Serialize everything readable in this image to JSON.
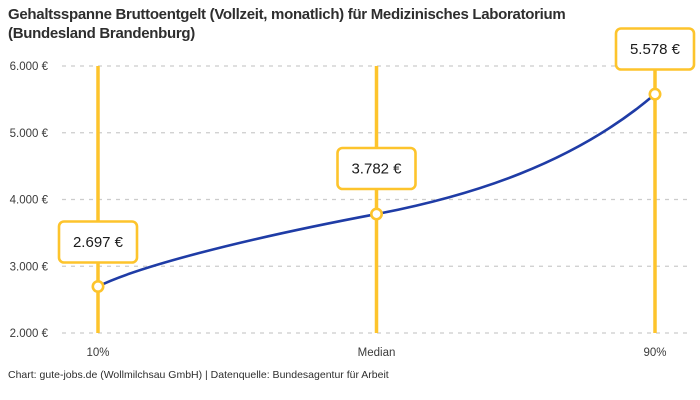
{
  "title": {
    "line1": "Gehaltsspanne Bruttoentgelt (Vollzeit, monatlich) für Medizinisches Laboratorium",
    "line2": "(Bundesland Brandenburg)"
  },
  "footer": {
    "text": "Chart: gute-jobs.de (Wollmilchsau GmbH) | Datenquelle: Bundesagentur für Arbeit"
  },
  "colors": {
    "accent_yellow": "#fdc42c",
    "line_blue": "#1f3ca6",
    "grid_gray": "#cccccc",
    "text_dark": "#2e2e2e",
    "box_fill": "#ffffff"
  },
  "chart_data": {
    "type": "line",
    "title": "Gehaltsspanne Bruttoentgelt (Vollzeit, monatlich) für Medizinisches Laboratorium (Bundesland Brandenburg)",
    "xlabel": "",
    "ylabel": "",
    "categories": [
      "10%",
      "Median",
      "90%"
    ],
    "values": [
      2697,
      3782,
      5578
    ],
    "point_labels": [
      "2.697 €",
      "3.782 €",
      "5.578 €"
    ],
    "ylim": [
      2000,
      6000
    ],
    "yticks": [
      {
        "value": 2000,
        "label": "2.000 €"
      },
      {
        "value": 3000,
        "label": "3.000 €"
      },
      {
        "value": 4000,
        "label": "4.000 €"
      },
      {
        "value": 5000,
        "label": "5.000 €"
      },
      {
        "value": 6000,
        "label": "6.000 €"
      }
    ],
    "grid": "horizontal-dashed",
    "legend": "none",
    "marker": "open-circle"
  }
}
